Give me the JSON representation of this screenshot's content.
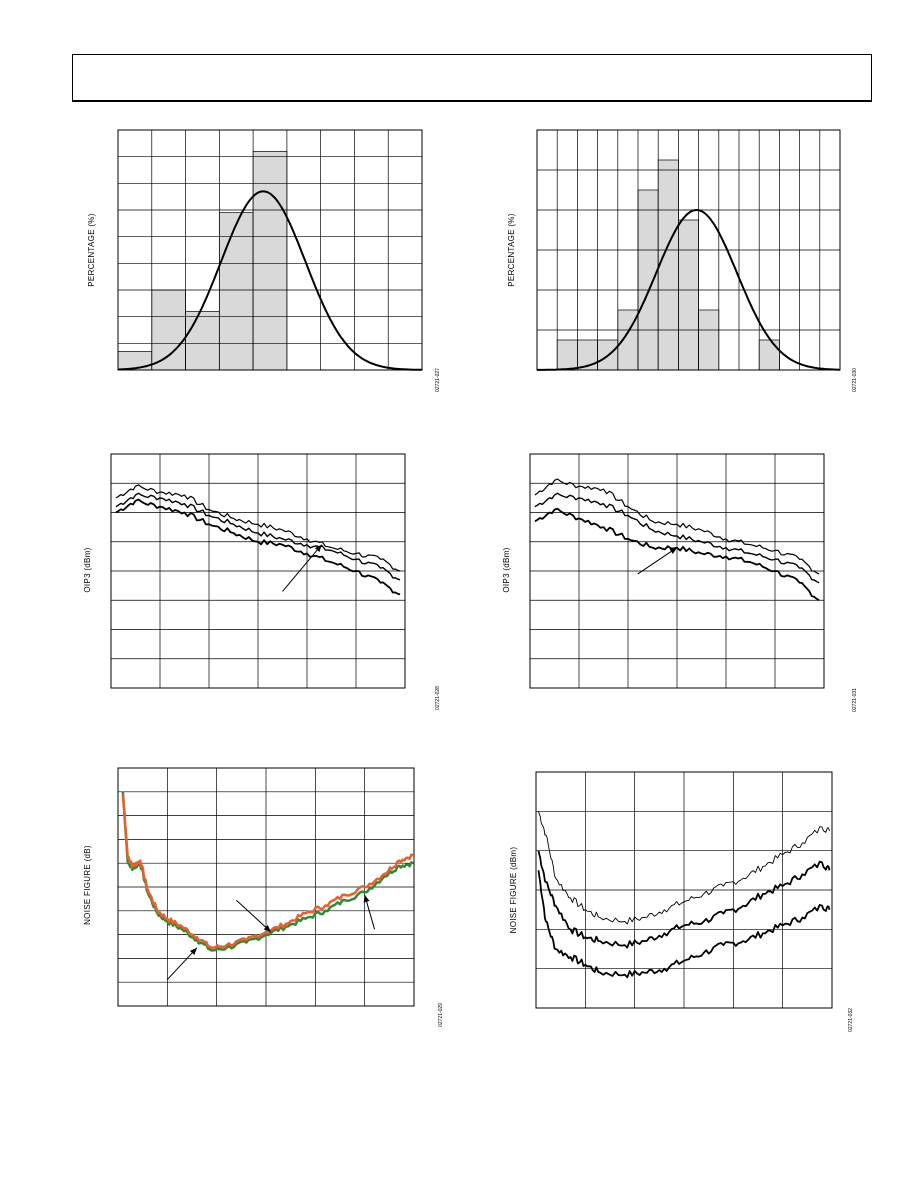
{
  "page": {
    "header_text": ""
  },
  "chart_data": [
    {
      "id": "hist-left",
      "type": "bar",
      "ylabel": "PERCENTAGE (%)",
      "figure_id": "02721-027",
      "bins": 9,
      "ylim": [
        0,
        9
      ],
      "values": [
        0.7,
        3.0,
        2.2,
        5.9,
        8.2,
        0,
        0,
        0,
        0
      ],
      "curve": {
        "type": "gaussian",
        "mean": 4.3,
        "sigma": 1.25,
        "peak": 6.7
      }
    },
    {
      "id": "hist-right",
      "type": "bar",
      "ylabel": "PERCENTAGE (%)",
      "figure_id": "02721-030",
      "bins": 15,
      "ylim": [
        0,
        6
      ],
      "values": [
        0,
        0.75,
        0.75,
        0.75,
        1.5,
        4.5,
        5.25,
        3.75,
        1.5,
        0,
        0,
        0.75,
        0,
        0,
        0
      ],
      "curve": {
        "type": "gaussian",
        "mean": 7.9,
        "sigma": 2.0,
        "peak": 4.0
      }
    },
    {
      "id": "oip3-left",
      "type": "line",
      "ylabel": "OIP3 (dBm)",
      "figure_id": "02721-028",
      "xlim": [
        0,
        6
      ],
      "ylim": [
        0,
        8
      ],
      "series": [
        {
          "values": [
            [
              0.1,
              6.5
            ],
            [
              0.5,
              6.9
            ],
            [
              1.0,
              6.7
            ],
            [
              1.5,
              6.6
            ],
            [
              2.0,
              6.1
            ],
            [
              2.5,
              5.8
            ],
            [
              3.0,
              5.6
            ],
            [
              3.5,
              5.4
            ],
            [
              4.0,
              5.1
            ],
            [
              4.5,
              4.8
            ],
            [
              5.0,
              4.6
            ],
            [
              5.5,
              4.4
            ],
            [
              5.9,
              4.0
            ]
          ]
        },
        {
          "values": [
            [
              0.1,
              6.2
            ],
            [
              0.5,
              6.6
            ],
            [
              1.0,
              6.5
            ],
            [
              1.5,
              6.3
            ],
            [
              2.0,
              5.9
            ],
            [
              2.5,
              5.6
            ],
            [
              3.0,
              5.3
            ],
            [
              3.5,
              5.1
            ],
            [
              4.0,
              4.9
            ],
            [
              4.5,
              4.7
            ],
            [
              5.0,
              4.4
            ],
            [
              5.5,
              4.1
            ],
            [
              5.9,
              3.7
            ]
          ]
        },
        {
          "values": [
            [
              0.1,
              6.0
            ],
            [
              0.5,
              6.4
            ],
            [
              1.0,
              6.2
            ],
            [
              1.5,
              6.0
            ],
            [
              2.0,
              5.6
            ],
            [
              2.5,
              5.3
            ],
            [
              3.0,
              5.0
            ],
            [
              3.5,
              4.9
            ],
            [
              4.0,
              4.6
            ],
            [
              4.5,
              4.3
            ],
            [
              5.0,
              4.0
            ],
            [
              5.5,
              3.6
            ],
            [
              5.9,
              3.2
            ]
          ]
        }
      ],
      "annotation_arrow": {
        "from": [
          3.5,
          3.3
        ],
        "to": [
          4.3,
          4.9
        ]
      }
    },
    {
      "id": "oip3-right",
      "type": "line",
      "ylabel": "OIP3 (dBm)",
      "figure_id": "02721-031",
      "xlim": [
        0,
        6
      ],
      "ylim": [
        0,
        8
      ],
      "series": [
        {
          "values": [
            [
              0.1,
              6.6
            ],
            [
              0.5,
              7.1
            ],
            [
              1.0,
              6.9
            ],
            [
              1.5,
              6.8
            ],
            [
              2.0,
              6.2
            ],
            [
              2.5,
              5.7
            ],
            [
              3.0,
              5.6
            ],
            [
              3.5,
              5.4
            ],
            [
              4.0,
              5.1
            ],
            [
              4.5,
              4.9
            ],
            [
              5.0,
              4.7
            ],
            [
              5.5,
              4.4
            ],
            [
              5.9,
              3.9
            ]
          ]
        },
        {
          "values": [
            [
              0.1,
              6.2
            ],
            [
              0.5,
              6.6
            ],
            [
              1.0,
              6.5
            ],
            [
              1.5,
              6.3
            ],
            [
              2.0,
              5.9
            ],
            [
              2.5,
              5.4
            ],
            [
              3.0,
              5.2
            ],
            [
              3.5,
              5.0
            ],
            [
              4.0,
              4.8
            ],
            [
              4.5,
              4.6
            ],
            [
              5.0,
              4.4
            ],
            [
              5.5,
              4.1
            ],
            [
              5.9,
              3.6
            ]
          ]
        },
        {
          "values": [
            [
              0.1,
              5.7
            ],
            [
              0.5,
              6.1
            ],
            [
              1.0,
              5.8
            ],
            [
              1.5,
              5.5
            ],
            [
              2.0,
              5.1
            ],
            [
              2.5,
              4.8
            ],
            [
              3.0,
              4.8
            ],
            [
              3.5,
              4.6
            ],
            [
              4.0,
              4.5
            ],
            [
              4.5,
              4.3
            ],
            [
              5.0,
              4.0
            ],
            [
              5.5,
              3.6
            ],
            [
              5.9,
              3.0
            ]
          ]
        }
      ],
      "annotation_arrow": {
        "from": [
          2.2,
          3.9
        ],
        "to": [
          3.0,
          4.8
        ]
      }
    },
    {
      "id": "nf-left",
      "type": "line",
      "ylabel": "NOISE FIGURE (dB)",
      "figure_id": "02721-029",
      "xlim": [
        0,
        6
      ],
      "ylim": [
        0,
        9
      ],
      "series": [
        {
          "color": "#2e8b3a",
          "values": [
            [
              0.1,
              8.1
            ],
            [
              0.2,
              5.4
            ],
            [
              0.3,
              5.2
            ],
            [
              0.45,
              5.4
            ],
            [
              0.6,
              4.3
            ],
            [
              0.8,
              3.5
            ],
            [
              1.0,
              3.2
            ],
            [
              1.3,
              2.9
            ],
            [
              1.6,
              2.5
            ],
            [
              1.9,
              2.1
            ],
            [
              2.2,
              2.2
            ],
            [
              2.6,
              2.4
            ],
            [
              3.0,
              2.7
            ],
            [
              3.4,
              3.0
            ],
            [
              3.8,
              3.3
            ],
            [
              4.2,
              3.6
            ],
            [
              4.6,
              4.0
            ],
            [
              5.0,
              4.3
            ],
            [
              5.4,
              4.9
            ],
            [
              5.7,
              5.3
            ],
            [
              5.98,
              5.4
            ]
          ]
        },
        {
          "color": "#e8602a",
          "values": [
            [
              0.1,
              8.0
            ],
            [
              0.2,
              5.6
            ],
            [
              0.3,
              5.3
            ],
            [
              0.45,
              5.5
            ],
            [
              0.6,
              4.4
            ],
            [
              0.8,
              3.6
            ],
            [
              1.0,
              3.3
            ],
            [
              1.3,
              3.0
            ],
            [
              1.6,
              2.6
            ],
            [
              1.9,
              2.2
            ],
            [
              2.2,
              2.3
            ],
            [
              2.6,
              2.5
            ],
            [
              3.0,
              2.8
            ],
            [
              3.4,
              3.1
            ],
            [
              3.8,
              3.5
            ],
            [
              4.2,
              3.8
            ],
            [
              4.6,
              4.2
            ],
            [
              5.0,
              4.5
            ],
            [
              5.4,
              5.0
            ],
            [
              5.7,
              5.5
            ],
            [
              5.98,
              5.7
            ]
          ]
        }
      ],
      "annotation_arrows": [
        {
          "from": [
            1.0,
            1.0
          ],
          "to": [
            1.6,
            2.2
          ]
        },
        {
          "from": [
            2.4,
            4.0
          ],
          "to": [
            3.1,
            2.8
          ]
        },
        {
          "from": [
            5.2,
            2.9
          ],
          "to": [
            5.0,
            4.2
          ]
        }
      ]
    },
    {
      "id": "nf-right",
      "type": "line",
      "ylabel": "NOISE FIGURE (dBm)",
      "figure_id": "02721-032",
      "xlim": [
        0,
        6
      ],
      "ylim": [
        0,
        6
      ],
      "series": [
        {
          "stroke": 1,
          "values": [
            [
              0.05,
              5.0
            ],
            [
              0.2,
              4.4
            ],
            [
              0.4,
              3.3
            ],
            [
              0.7,
              2.8
            ],
            [
              1.0,
              2.5
            ],
            [
              1.3,
              2.3
            ],
            [
              1.8,
              2.2
            ],
            [
              2.2,
              2.3
            ],
            [
              2.6,
              2.5
            ],
            [
              3.0,
              2.7
            ],
            [
              3.4,
              2.9
            ],
            [
              3.8,
              3.1
            ],
            [
              4.2,
              3.3
            ],
            [
              4.6,
              3.6
            ],
            [
              5.0,
              3.9
            ],
            [
              5.4,
              4.2
            ],
            [
              5.8,
              4.6
            ],
            [
              5.95,
              4.5
            ]
          ]
        },
        {
          "stroke": 2,
          "values": [
            [
              0.05,
              4.0
            ],
            [
              0.2,
              3.2
            ],
            [
              0.4,
              2.6
            ],
            [
              0.7,
              2.0
            ],
            [
              1.0,
              1.8
            ],
            [
              1.3,
              1.7
            ],
            [
              1.8,
              1.6
            ],
            [
              2.2,
              1.7
            ],
            [
              2.6,
              1.9
            ],
            [
              3.0,
              2.1
            ],
            [
              3.4,
              2.2
            ],
            [
              3.8,
              2.4
            ],
            [
              4.2,
              2.6
            ],
            [
              4.6,
              2.9
            ],
            [
              5.0,
              3.1
            ],
            [
              5.4,
              3.4
            ],
            [
              5.8,
              3.7
            ],
            [
              5.95,
              3.5
            ]
          ]
        },
        {
          "stroke": 2,
          "values": [
            [
              0.05,
              3.5
            ],
            [
              0.2,
              2.2
            ],
            [
              0.4,
              1.5
            ],
            [
              0.7,
              1.3
            ],
            [
              1.0,
              1.1
            ],
            [
              1.3,
              0.9
            ],
            [
              1.8,
              0.85
            ],
            [
              2.2,
              0.9
            ],
            [
              2.6,
              1.0
            ],
            [
              3.0,
              1.2
            ],
            [
              3.4,
              1.4
            ],
            [
              3.8,
              1.6
            ],
            [
              4.2,
              1.7
            ],
            [
              4.6,
              1.9
            ],
            [
              5.0,
              2.1
            ],
            [
              5.4,
              2.3
            ],
            [
              5.8,
              2.6
            ],
            [
              5.95,
              2.5
            ]
          ]
        }
      ]
    }
  ]
}
